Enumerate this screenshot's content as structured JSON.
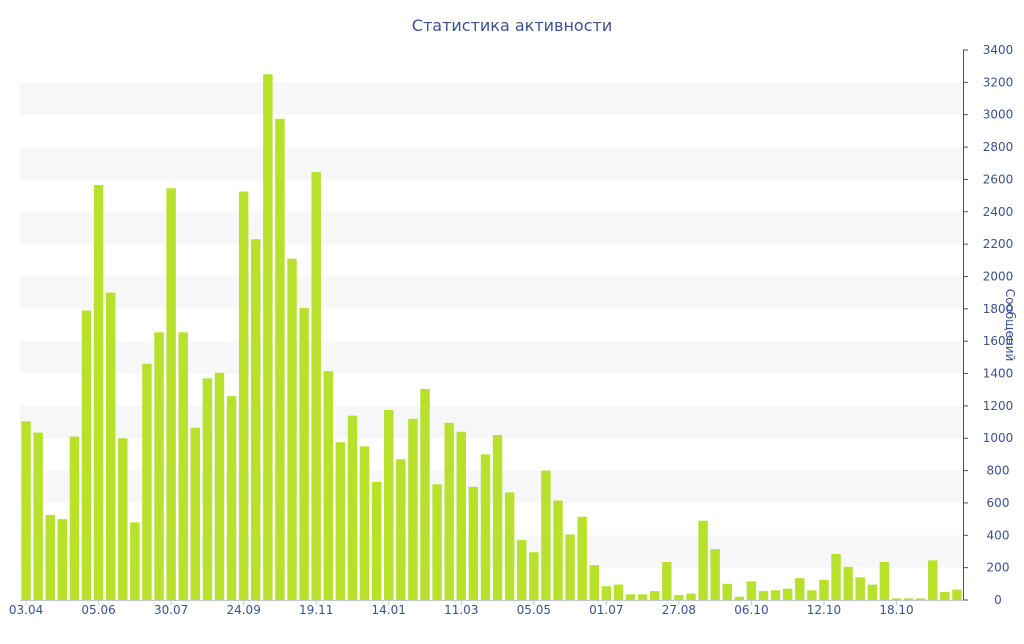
{
  "chart_data": {
    "type": "bar",
    "title": "Статистика активности",
    "xlabel": "",
    "ylabel": "Сообщений",
    "ylim": [
      0,
      3400
    ],
    "y_ticks": [
      0,
      200,
      400,
      600,
      800,
      1000,
      1200,
      1400,
      1600,
      1800,
      2000,
      2200,
      2400,
      2600,
      2800,
      3000,
      3200,
      3400
    ],
    "x_tick_labels": [
      {
        "label": "03.04",
        "index": 0
      },
      {
        "label": "05.06",
        "index": 6
      },
      {
        "label": "30.07",
        "index": 12
      },
      {
        "label": "24.09",
        "index": 18
      },
      {
        "label": "19.11",
        "index": 24
      },
      {
        "label": "14.01",
        "index": 30
      },
      {
        "label": "11.03",
        "index": 36
      },
      {
        "label": "05.05",
        "index": 42
      },
      {
        "label": "01.07",
        "index": 48
      },
      {
        "label": "27.08",
        "index": 54
      },
      {
        "label": "06.10",
        "index": 60
      },
      {
        "label": "12.10",
        "index": 66
      },
      {
        "label": "18.10",
        "index": 72
      }
    ],
    "grid": "alternating horizontal bands",
    "y_axis_position": "right",
    "series": [
      {
        "values": [
          1105,
          1035,
          525,
          500,
          1010,
          1790,
          2565,
          1900,
          1000,
          480,
          1460,
          1655,
          2545,
          1655,
          1065,
          1370,
          1405,
          1260,
          2525,
          2230,
          3250,
          2975,
          2110,
          1805,
          2645,
          1415,
          975,
          1140,
          950,
          730,
          1175,
          870,
          1120,
          1305,
          715,
          1095,
          1040,
          700,
          900,
          1020,
          665,
          370,
          295,
          800,
          615,
          405,
          515,
          215,
          85,
          95,
          35,
          35,
          55,
          235,
          30,
          40,
          490,
          315,
          100,
          20,
          115,
          55,
          60,
          70,
          135,
          60,
          125,
          285,
          205,
          140,
          95,
          235,
          10,
          10,
          10,
          245,
          50,
          65
        ]
      }
    ],
    "bar_color": "#b8e12b",
    "band_color": "#f7f7f7",
    "text_color": "#3d5190"
  }
}
